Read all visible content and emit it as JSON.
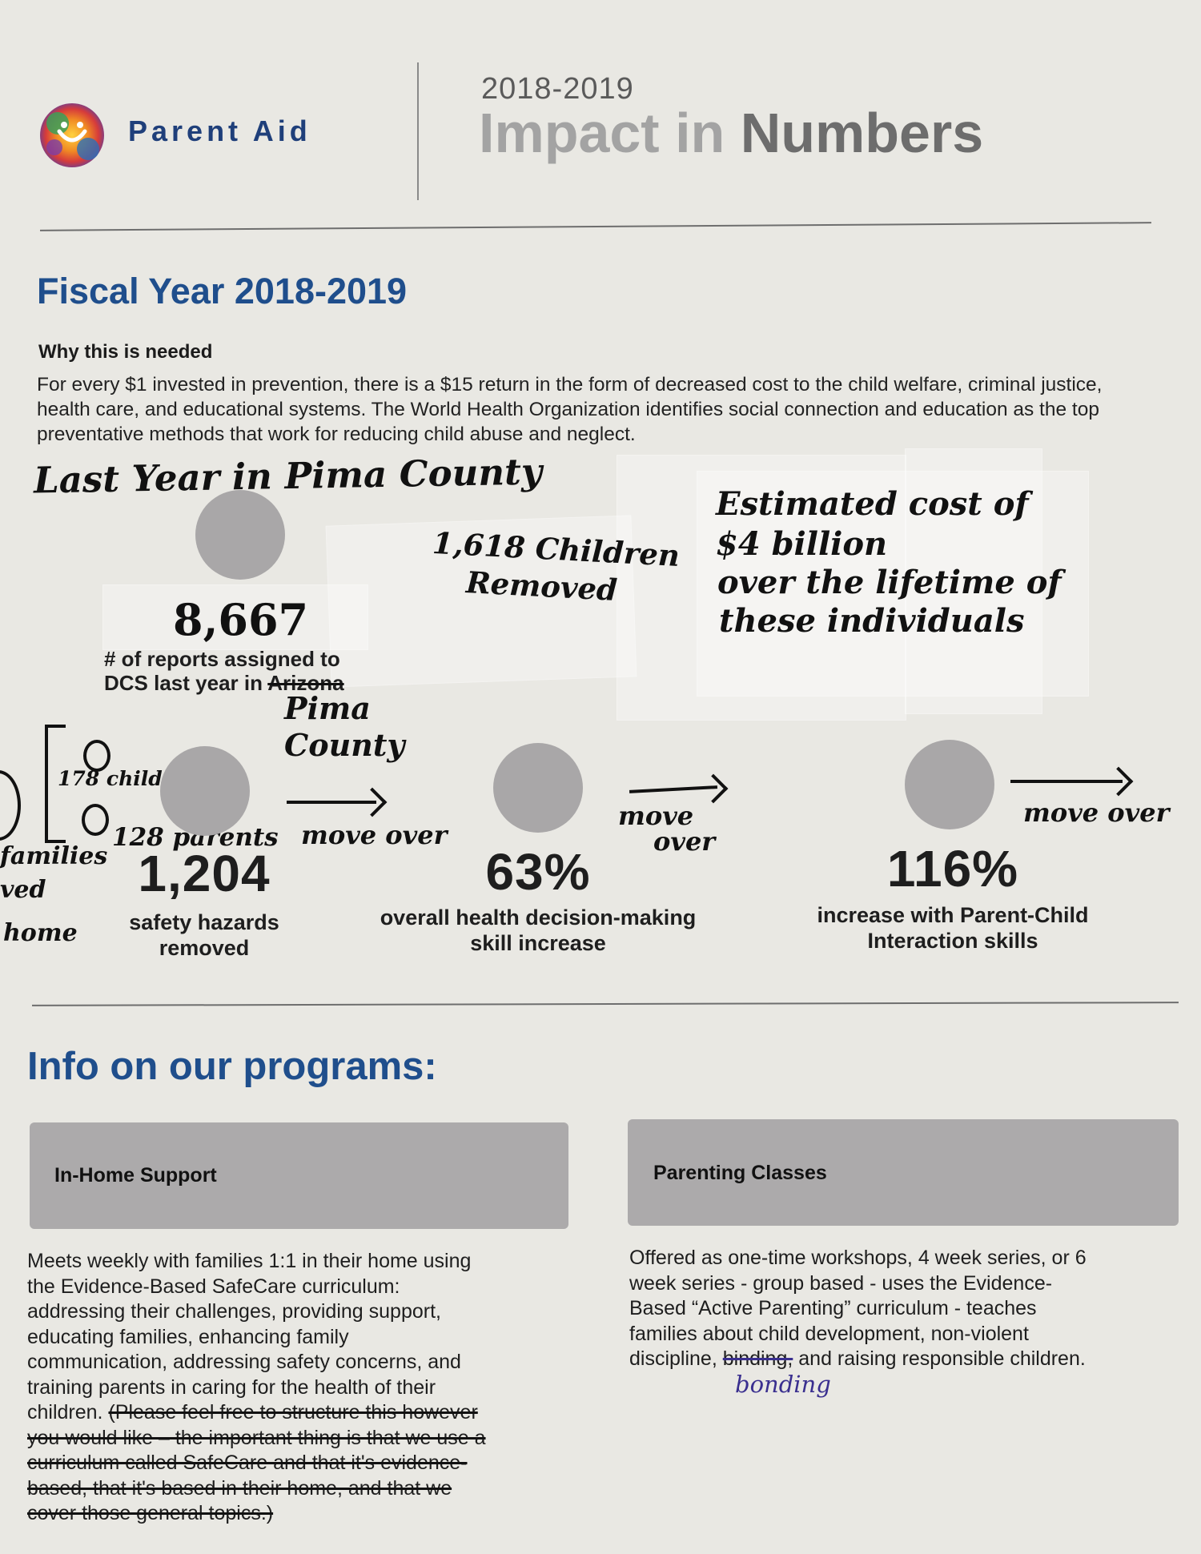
{
  "brand": {
    "name": "Parent Aid",
    "logo_icon": "rainbow-heart-logo-icon"
  },
  "header": {
    "years": "2018-2019",
    "title_impact": "Impact in",
    "title_numbers": "Numbers"
  },
  "fiscal": {
    "heading": "Fiscal Year 2018-2019",
    "why_heading": "Why this is needed",
    "why_text": "For every $1 invested in prevention, there is a $15 return in the form of decreased cost to the child welfare, criminal justice, health care, and educational systems. The World Health Organization identifies social connection and education as the top preventative methods that work for reducing child abuse and neglect."
  },
  "handwriting": {
    "last_year": "Last Year in Pima County",
    "reports_number": "8,667",
    "children_removed_1": "1,618 Children",
    "children_removed_2": "Removed",
    "cost_1": "Estimated cost of",
    "cost_2": "$4 billion",
    "cost_3": "over the lifetime of",
    "cost_4": "these individuals",
    "pima_1": "Pima",
    "pima_2": "County",
    "children_count": "178 children",
    "parents_count": "128 parents",
    "margin_1": "families",
    "margin_2": "ved",
    "margin_3": "home",
    "move_over": "move over",
    "move": "move",
    "over": "over",
    "bonding": "bonding"
  },
  "stats": {
    "reports_label_1": "# of reports assigned to",
    "reports_label_2": "DCS last year in",
    "reports_label_struck": "Arizona",
    "hazards_number": "1,204",
    "hazards_label_1": "safety hazards",
    "hazards_label_2": "removed",
    "health_number": "63%",
    "health_label_1": "overall health decision-making",
    "health_label_2": "skill increase",
    "pci_number": "116%",
    "pci_label_1": "increase with Parent-Child",
    "pci_label_2": "Interaction skills"
  },
  "programs": {
    "heading": "Info on our programs:",
    "in_home": {
      "title": "In-Home Support",
      "l1": "Meets weekly with families 1:1 in their home using",
      "l2": "the Evidence-Based SafeCare curriculum:",
      "l3": "addressing their challenges, providing support,",
      "l4": "educating families, enhancing family",
      "l5": "communication, addressing safety concerns, and",
      "l6": "training parents in caring for the health of their",
      "l7": "children.",
      "s1": "(Please feel free to structure this however",
      "s2": "you would like – the important thing is that we use a",
      "s3": "curriculum called SafeCare and that it's evidence-",
      "s4": "based, that it's based in their home, and that we",
      "s5": "cover those general topics.)"
    },
    "classes": {
      "title": "Parenting Classes",
      "l1": "Offered as one-time workshops, 4 week series, or 6",
      "l2": "week series - group based -  uses the Evidence-",
      "l3": "Based “Active Parenting” curriculum - teaches",
      "l4": "families about child development, non-violent",
      "l5a": "discipline,",
      "l5_struck": "binding,",
      "l5b": "and raising responsible children."
    }
  },
  "colors": {
    "accent_blue": "#1f4e8c",
    "stat_circle": "#a9a7a8",
    "program_box": "#acaaab",
    "bonding_ink": "#3a2f8f"
  }
}
